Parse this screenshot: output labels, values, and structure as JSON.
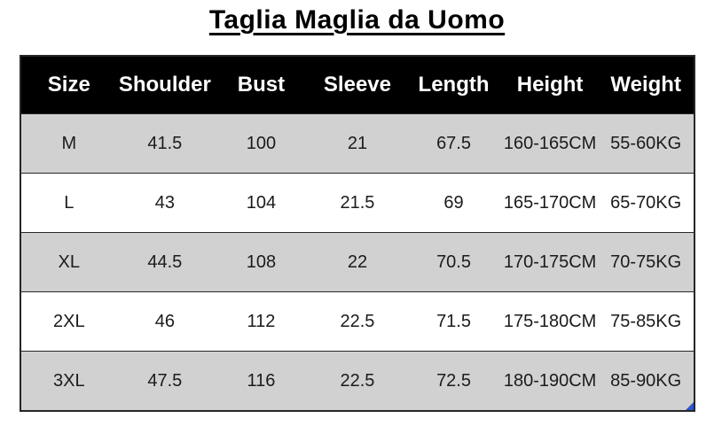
{
  "chart_data": {
    "type": "table",
    "title": "Taglia Maglia da Uomo",
    "columns": [
      "Size",
      "Shoulder",
      "Bust",
      "Sleeve",
      "Length",
      "Height",
      "Weight"
    ],
    "rows": [
      [
        "M",
        "41.5",
        "100",
        "21",
        "67.5",
        "160-165CM",
        "55-60KG"
      ],
      [
        "L",
        "43",
        "104",
        "21.5",
        "69",
        "165-170CM",
        "65-70KG"
      ],
      [
        "XL",
        "44.5",
        "108",
        "22",
        "70.5",
        "170-175CM",
        "70-75KG"
      ],
      [
        "2XL",
        "46",
        "112",
        "22.5",
        "71.5",
        "175-180CM",
        "75-85KG"
      ],
      [
        "3XL",
        "47.5",
        "116",
        "22.5",
        "72.5",
        "180-190CM",
        "85-90KG"
      ]
    ],
    "layout": {
      "header_position": "top",
      "row_striping": "odd-rows-gray",
      "column_borders": false,
      "row_borders": true
    }
  },
  "colors": {
    "title_text": "#000000",
    "header_bg": "#000000",
    "header_text": "#ffffff",
    "stripe_bg": "#d1d1d1",
    "row_bg": "#ffffff",
    "border": "#262626",
    "handle": "#2f55d4"
  }
}
